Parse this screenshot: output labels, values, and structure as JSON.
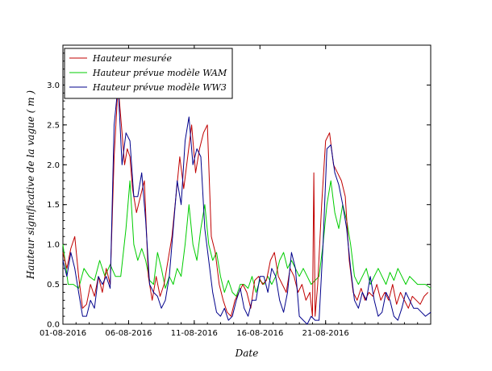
{
  "chart_data": {
    "type": "line",
    "title": "",
    "xlabel": "Date",
    "ylabel": "Hauteur significative de la vague  ( m )",
    "x_start": "01-08-2016",
    "x_end": "29-08-2016",
    "xlim_days": [
      0,
      28
    ],
    "ylim": [
      0,
      3.5
    ],
    "y_ticks": [
      0.0,
      0.5,
      1.0,
      1.5,
      2.0,
      2.5,
      3.0
    ],
    "y_tick_labels": [
      "0.0",
      "0.5",
      "1.0",
      "1.5",
      "2.0",
      "2.5",
      "3.0"
    ],
    "x_ticks_days": [
      0,
      5,
      10,
      15,
      20
    ],
    "x_tick_labels": [
      "01-08-2016",
      "06-08-2016",
      "11-08-2016",
      "16-08-2016",
      "21-08-2016"
    ],
    "grid": false,
    "legend_position": "top-left",
    "series": [
      {
        "name": "Hauteur mesurée",
        "color": "#c00000",
        "x": [
          0,
          0.3,
          0.6,
          0.9,
          1.2,
          1.5,
          1.8,
          2.1,
          2.4,
          2.7,
          3.0,
          3.3,
          3.6,
          3.9,
          4.2,
          4.5,
          4.7,
          4.9,
          5.1,
          5.3,
          5.6,
          5.9,
          6.2,
          6.5,
          6.8,
          7.1,
          7.4,
          7.7,
          8.0,
          8.3,
          8.6,
          8.9,
          9.2,
          9.5,
          9.8,
          10.1,
          10.4,
          10.7,
          11.0,
          11.3,
          11.6,
          11.9,
          12.2,
          12.5,
          12.8,
          13.1,
          13.4,
          13.7,
          14.0,
          14.3,
          14.6,
          14.9,
          15.2,
          15.5,
          15.8,
          16.1,
          16.4,
          16.7,
          17.0,
          17.3,
          17.6,
          17.9,
          18.2,
          18.5,
          18.8,
          19.0,
          19.1,
          19.2,
          19.4,
          19.7,
          20.0,
          20.3,
          20.6,
          20.9,
          21.2,
          21.5,
          21.8,
          22.1,
          22.4,
          22.7,
          23.0,
          23.3,
          23.6,
          23.9,
          24.2,
          24.5,
          24.8,
          25.1,
          25.4,
          25.7,
          26.0,
          26.3,
          26.6,
          26.9,
          27.2,
          27.5,
          27.8
        ],
        "y": [
          0.9,
          0.7,
          0.95,
          1.1,
          0.6,
          0.2,
          0.25,
          0.5,
          0.35,
          0.6,
          0.4,
          0.7,
          0.5,
          2.1,
          3.0,
          2.4,
          2.0,
          2.2,
          2.1,
          1.7,
          1.4,
          1.6,
          1.8,
          0.6,
          0.3,
          0.6,
          0.35,
          0.5,
          0.8,
          1.1,
          1.6,
          2.1,
          1.7,
          2.1,
          2.5,
          1.9,
          2.2,
          2.4,
          2.5,
          1.1,
          0.9,
          0.5,
          0.3,
          0.15,
          0.1,
          0.3,
          0.4,
          0.5,
          0.4,
          0.2,
          0.55,
          0.6,
          0.5,
          0.55,
          0.8,
          0.9,
          0.6,
          0.5,
          0.4,
          0.7,
          0.6,
          0.4,
          0.5,
          0.3,
          0.4,
          0.1,
          1.9,
          0.1,
          0.5,
          1.5,
          2.3,
          2.4,
          2.0,
          1.9,
          1.8,
          1.6,
          0.8,
          0.4,
          0.3,
          0.45,
          0.3,
          0.4,
          0.35,
          0.5,
          0.3,
          0.4,
          0.3,
          0.5,
          0.25,
          0.4,
          0.3,
          0.2,
          0.35,
          0.3,
          0.25,
          0.35,
          0.4
        ]
      },
      {
        "name": "Hauteur prévue modèle WAM",
        "color": "#00cc00",
        "x": [
          0,
          0.4,
          0.8,
          1.2,
          1.6,
          2.0,
          2.4,
          2.8,
          3.2,
          3.6,
          4.0,
          4.4,
          4.8,
          5.1,
          5.4,
          5.7,
          6.0,
          6.3,
          6.6,
          6.9,
          7.2,
          7.5,
          7.8,
          8.1,
          8.4,
          8.7,
          9.0,
          9.3,
          9.6,
          9.9,
          10.2,
          10.5,
          10.8,
          11.1,
          11.4,
          11.7,
          12.0,
          12.3,
          12.6,
          12.9,
          13.2,
          13.5,
          13.8,
          14.1,
          14.4,
          14.7,
          15.0,
          15.3,
          15.6,
          15.9,
          16.2,
          16.5,
          16.8,
          17.1,
          17.4,
          17.7,
          18.0,
          18.3,
          18.6,
          18.9,
          19.2,
          19.5,
          19.8,
          20.1,
          20.4,
          20.7,
          21.0,
          21.3,
          21.6,
          21.9,
          22.2,
          22.5,
          22.8,
          23.1,
          23.4,
          23.7,
          24.0,
          24.3,
          24.6,
          24.9,
          25.2,
          25.5,
          25.8,
          26.1,
          26.4,
          26.7,
          27.0,
          27.3,
          27.6,
          28.0
        ],
        "y": [
          1.0,
          0.5,
          0.5,
          0.45,
          0.7,
          0.6,
          0.55,
          0.8,
          0.6,
          0.75,
          0.6,
          0.6,
          1.2,
          1.8,
          1.0,
          0.8,
          0.95,
          0.8,
          0.55,
          0.5,
          0.9,
          0.7,
          0.45,
          0.6,
          0.5,
          0.7,
          0.6,
          1.0,
          1.5,
          1.0,
          0.8,
          1.2,
          1.5,
          1.0,
          0.8,
          0.9,
          0.6,
          0.4,
          0.55,
          0.4,
          0.35,
          0.5,
          0.5,
          0.45,
          0.6,
          0.4,
          0.55,
          0.5,
          0.6,
          0.5,
          0.6,
          0.8,
          0.9,
          0.7,
          0.8,
          0.7,
          0.6,
          0.7,
          0.6,
          0.5,
          0.55,
          0.6,
          1.0,
          1.5,
          1.8,
          1.4,
          1.2,
          1.5,
          1.3,
          1.0,
          0.6,
          0.5,
          0.6,
          0.7,
          0.5,
          0.6,
          0.7,
          0.6,
          0.5,
          0.65,
          0.55,
          0.7,
          0.6,
          0.5,
          0.6,
          0.55,
          0.5,
          0.5,
          0.5,
          0.45
        ]
      },
      {
        "name": "Hauteur prévue modèle WW3",
        "color": "#00008b",
        "x": [
          0,
          0.3,
          0.6,
          0.9,
          1.2,
          1.5,
          1.8,
          2.1,
          2.4,
          2.7,
          3.0,
          3.3,
          3.6,
          3.9,
          4.2,
          4.5,
          4.8,
          5.1,
          5.4,
          5.7,
          6.0,
          6.3,
          6.6,
          6.9,
          7.2,
          7.5,
          7.8,
          8.1,
          8.4,
          8.7,
          9.0,
          9.3,
          9.6,
          9.9,
          10.2,
          10.5,
          10.8,
          11.1,
          11.4,
          11.7,
          12.0,
          12.3,
          12.6,
          12.9,
          13.2,
          13.5,
          13.8,
          14.1,
          14.4,
          14.7,
          15.0,
          15.3,
          15.6,
          15.9,
          16.2,
          16.5,
          16.8,
          17.1,
          17.4,
          17.7,
          18.0,
          18.3,
          18.6,
          18.9,
          19.2,
          19.5,
          19.8,
          20.1,
          20.4,
          20.7,
          21.0,
          21.3,
          21.6,
          21.9,
          22.2,
          22.5,
          22.8,
          23.1,
          23.4,
          23.7,
          24.0,
          24.3,
          24.6,
          24.9,
          25.2,
          25.5,
          25.8,
          26.1,
          26.4,
          26.7,
          27.0,
          27.3,
          27.6,
          28.0
        ],
        "y": [
          0.8,
          0.6,
          0.9,
          0.7,
          0.4,
          0.1,
          0.1,
          0.3,
          0.2,
          0.6,
          0.5,
          0.6,
          0.45,
          2.5,
          3.0,
          2.0,
          2.4,
          2.3,
          1.6,
          1.6,
          1.9,
          1.3,
          0.5,
          0.4,
          0.35,
          0.2,
          0.3,
          0.6,
          1.2,
          1.8,
          1.5,
          2.3,
          2.6,
          2.0,
          2.2,
          2.1,
          1.2,
          0.8,
          0.4,
          0.15,
          0.1,
          0.2,
          0.05,
          0.1,
          0.3,
          0.45,
          0.2,
          0.1,
          0.3,
          0.3,
          0.6,
          0.6,
          0.4,
          0.7,
          0.6,
          0.3,
          0.15,
          0.4,
          0.9,
          0.7,
          0.1,
          0.05,
          0.0,
          0.1,
          0.05,
          0.05,
          1.0,
          2.2,
          2.25,
          1.9,
          1.75,
          1.5,
          1.2,
          0.7,
          0.3,
          0.2,
          0.4,
          0.3,
          0.6,
          0.3,
          0.1,
          0.15,
          0.4,
          0.3,
          0.1,
          0.05,
          0.2,
          0.4,
          0.3,
          0.2,
          0.2,
          0.15,
          0.1,
          0.15
        ]
      }
    ]
  }
}
